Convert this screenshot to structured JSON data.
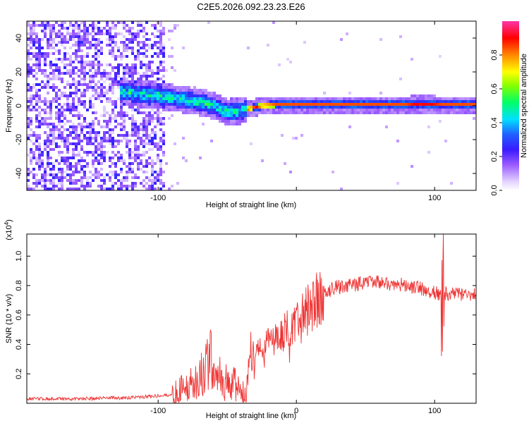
{
  "title": "C2E5.2026.092.23.23.E26",
  "chart_data": [
    {
      "type": "heatmap",
      "name": "spectrogram",
      "xlabel": "Height of straight line (km)",
      "ylabel": "Frequency (Hz)",
      "xlim": [
        -195,
        130
      ],
      "ylim": [
        -50,
        50
      ],
      "xticks": [
        -100,
        0,
        100
      ],
      "xtick_labels": [
        "-100",
        "",
        "100"
      ],
      "yticks": [
        -40,
        -20,
        0,
        20,
        40
      ],
      "ytick_labels": [
        "-40",
        "-20",
        "0",
        "20",
        "40"
      ],
      "colorbar": {
        "label": "Normalized spectral amplitude",
        "range": [
          0,
          1
        ],
        "ticks": [
          0.0,
          0.2,
          0.4,
          0.6,
          0.8
        ],
        "tick_labels": [
          "0.0",
          "0.2",
          "0.4",
          "0.6",
          "0.8"
        ]
      },
      "features": {
        "noise_region_x": [
          -195,
          -95
        ],
        "signal_ridge": {
          "x": [
            -125,
            -100,
            -85,
            -70,
            -60,
            -50,
            -40,
            -35,
            -25,
            -15,
            0,
            20,
            50,
            80,
            90,
            105,
            130
          ],
          "y": [
            8,
            6,
            4,
            2,
            0,
            -4,
            -3,
            -2,
            0,
            0.5,
            0.5,
            0.5,
            0.5,
            0.5,
            1,
            0.5,
            0.5
          ]
        }
      }
    },
    {
      "type": "line",
      "name": "snr",
      "xlabel": "Height of straight line (km)",
      "ylabel": "SNR (10 * v/v)",
      "y_multiplier_label": "(x10",
      "y_multiplier_exponent": "4",
      "y_multiplier_close": ")",
      "xlim": [
        -195,
        130
      ],
      "ylim": [
        0,
        1.15
      ],
      "xticks": [
        -100,
        0,
        100
      ],
      "xtick_labels": [
        "-100",
        "0",
        "100"
      ],
      "yticks": [
        0.2,
        0.4,
        0.6,
        0.8,
        1.0
      ],
      "ytick_labels": [
        "0.2",
        "0.4",
        "0.6",
        "0.8",
        "1.0"
      ],
      "color": "#ee3333",
      "series": {
        "name": "SNR",
        "x": [
          -195,
          -160,
          -130,
          -115,
          -100,
          -90,
          -85,
          -80,
          -75,
          -70,
          -65,
          -62,
          -60,
          -57,
          -55,
          -50,
          -45,
          -40,
          -36,
          -35,
          -33,
          -30,
          -25,
          -20,
          -15,
          -10,
          -8,
          -5,
          0,
          5,
          10,
          15,
          20,
          25,
          30,
          35,
          40,
          45,
          50,
          55,
          60,
          65,
          70,
          75,
          80,
          85,
          90,
          95,
          100,
          103,
          105,
          106,
          108,
          110,
          115,
          120,
          125,
          130
        ],
        "y": [
          0.03,
          0.03,
          0.035,
          0.04,
          0.05,
          0.06,
          0.08,
          0.1,
          0.13,
          0.18,
          0.24,
          0.3,
          0.2,
          0.15,
          0.18,
          0.13,
          0.14,
          0.07,
          0.05,
          0.22,
          0.3,
          0.35,
          0.38,
          0.41,
          0.44,
          0.47,
          0.5,
          0.52,
          0.55,
          0.6,
          0.65,
          0.7,
          0.74,
          0.77,
          0.79,
          0.8,
          0.8,
          0.81,
          0.81,
          0.82,
          0.82,
          0.82,
          0.81,
          0.81,
          0.8,
          0.79,
          0.78,
          0.77,
          0.75,
          0.74,
          0.72,
          0.74,
          0.75,
          0.74,
          0.74,
          0.74,
          0.73,
          0.74
        ]
      }
    }
  ]
}
